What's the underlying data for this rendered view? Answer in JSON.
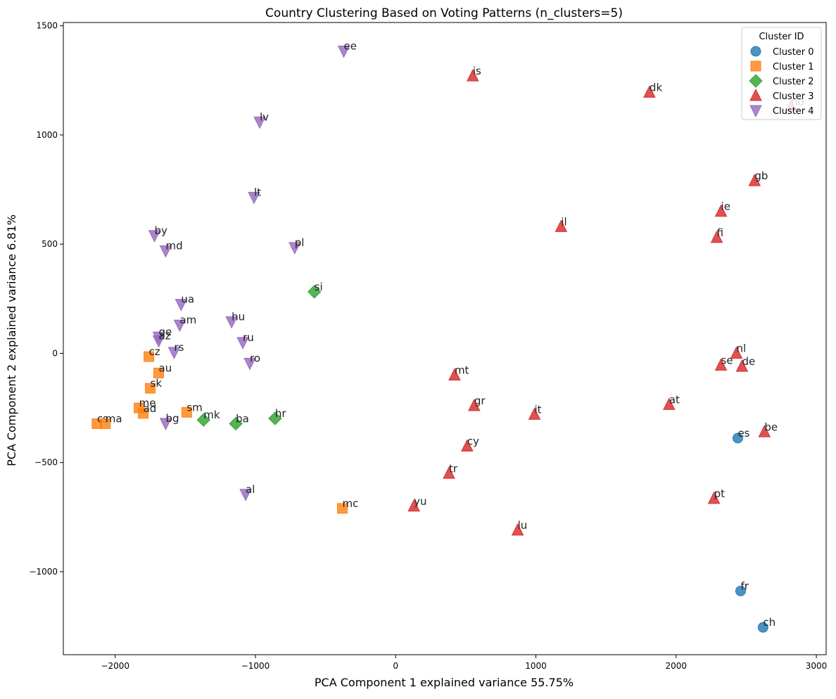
{
  "chart_data": {
    "type": "scatter",
    "title": "Country Clustering Based on Voting Patterns (n_clusters=5)",
    "xlabel": "PCA Component 1 explained variance 55.75%",
    "ylabel": "PCA Component 2 explained variance 6.81%",
    "xlim": [
      -2370,
      3070
    ],
    "ylim": [
      -1380,
      1515
    ],
    "xticks": [
      -2000,
      -1000,
      0,
      1000,
      2000,
      3000
    ],
    "yticks": [
      -1000,
      -500,
      0,
      500,
      1000,
      1500
    ],
    "xtick_labels": [
      "−2000",
      "−1000",
      "0",
      "1000",
      "2000",
      "3000"
    ],
    "ytick_labels": [
      "−1000",
      "−500",
      "0",
      "500",
      "1000",
      "1500"
    ],
    "grid": false,
    "legend": {
      "title": "Cluster ID",
      "position": "top-right"
    },
    "series": [
      {
        "name": "Cluster 0",
        "marker": "circle",
        "color": "#1f77b4",
        "points": [
          {
            "label": "es",
            "x": 2440,
            "y": -388
          },
          {
            "label": "fr",
            "x": 2460,
            "y": -1088
          },
          {
            "label": "ch",
            "x": 2620,
            "y": -1255
          }
        ]
      },
      {
        "name": "Cluster 1",
        "marker": "square",
        "color": "#ff7f0e",
        "points": [
          {
            "label": "cz",
            "x": -1760,
            "y": -15
          },
          {
            "label": "au",
            "x": -1690,
            "y": -90
          },
          {
            "label": "sk",
            "x": -1750,
            "y": -160
          },
          {
            "label": "me",
            "x": -1830,
            "y": -250
          },
          {
            "label": "ad",
            "x": -1800,
            "y": -275
          },
          {
            "label": "sm",
            "x": -1490,
            "y": -270
          },
          {
            "label": "cs",
            "x": -2130,
            "y": -322
          },
          {
            "label": "ma",
            "x": -2070,
            "y": -322
          },
          {
            "label": "mc",
            "x": -380,
            "y": -710
          }
        ]
      },
      {
        "name": "Cluster 2",
        "marker": "diamond",
        "color": "#2ca02c",
        "points": [
          {
            "label": "si",
            "x": -580,
            "y": 282
          },
          {
            "label": "mk",
            "x": -1370,
            "y": -305
          },
          {
            "label": "ba",
            "x": -1140,
            "y": -322
          },
          {
            "label": "hr",
            "x": -860,
            "y": -298
          }
        ]
      },
      {
        "name": "Cluster 3",
        "marker": "triangle-up",
        "color": "#d62728",
        "points": [
          {
            "label": "is",
            "x": 550,
            "y": 1270
          },
          {
            "label": "dk",
            "x": 1810,
            "y": 1195
          },
          {
            "label": "no",
            "x": 2820,
            "y": 1130
          },
          {
            "label": "gb",
            "x": 2560,
            "y": 790
          },
          {
            "label": "ie",
            "x": 2320,
            "y": 650
          },
          {
            "label": "il",
            "x": 1180,
            "y": 580
          },
          {
            "label": "fi",
            "x": 2290,
            "y": 530
          },
          {
            "label": "nl",
            "x": 2430,
            "y": 0
          },
          {
            "label": "se",
            "x": 2320,
            "y": -55
          },
          {
            "label": "de",
            "x": 2470,
            "y": -60
          },
          {
            "label": "mt",
            "x": 420,
            "y": -100
          },
          {
            "label": "at",
            "x": 1950,
            "y": -235
          },
          {
            "label": "gr",
            "x": 560,
            "y": -240
          },
          {
            "label": "it",
            "x": 990,
            "y": -280
          },
          {
            "label": "be",
            "x": 2630,
            "y": -360
          },
          {
            "label": "cy",
            "x": 510,
            "y": -425
          },
          {
            "label": "tr",
            "x": 380,
            "y": -550
          },
          {
            "label": "pt",
            "x": 2270,
            "y": -665
          },
          {
            "label": "yu",
            "x": 130,
            "y": -700
          },
          {
            "label": "lu",
            "x": 870,
            "y": -810
          }
        ]
      },
      {
        "name": "Cluster 4",
        "marker": "triangle-down",
        "color": "#9467bd",
        "points": [
          {
            "label": "ee",
            "x": -370,
            "y": 1385
          },
          {
            "label": "lv",
            "x": -970,
            "y": 1060
          },
          {
            "label": "lt",
            "x": -1010,
            "y": 715
          },
          {
            "label": "by",
            "x": -1720,
            "y": 540
          },
          {
            "label": "md",
            "x": -1640,
            "y": 470
          },
          {
            "label": "pl",
            "x": -720,
            "y": 485
          },
          {
            "label": "ua",
            "x": -1530,
            "y": 225
          },
          {
            "label": "hu",
            "x": -1170,
            "y": 145
          },
          {
            "label": "am",
            "x": -1540,
            "y": 130
          },
          {
            "label": "ge",
            "x": -1690,
            "y": 75
          },
          {
            "label": "az",
            "x": -1690,
            "y": 58
          },
          {
            "label": "ru",
            "x": -1090,
            "y": 50
          },
          {
            "label": "rs",
            "x": -1580,
            "y": 5
          },
          {
            "label": "ro",
            "x": -1040,
            "y": -45
          },
          {
            "label": "bg",
            "x": -1640,
            "y": -320
          },
          {
            "label": "al",
            "x": -1070,
            "y": -645
          }
        ]
      }
    ]
  }
}
